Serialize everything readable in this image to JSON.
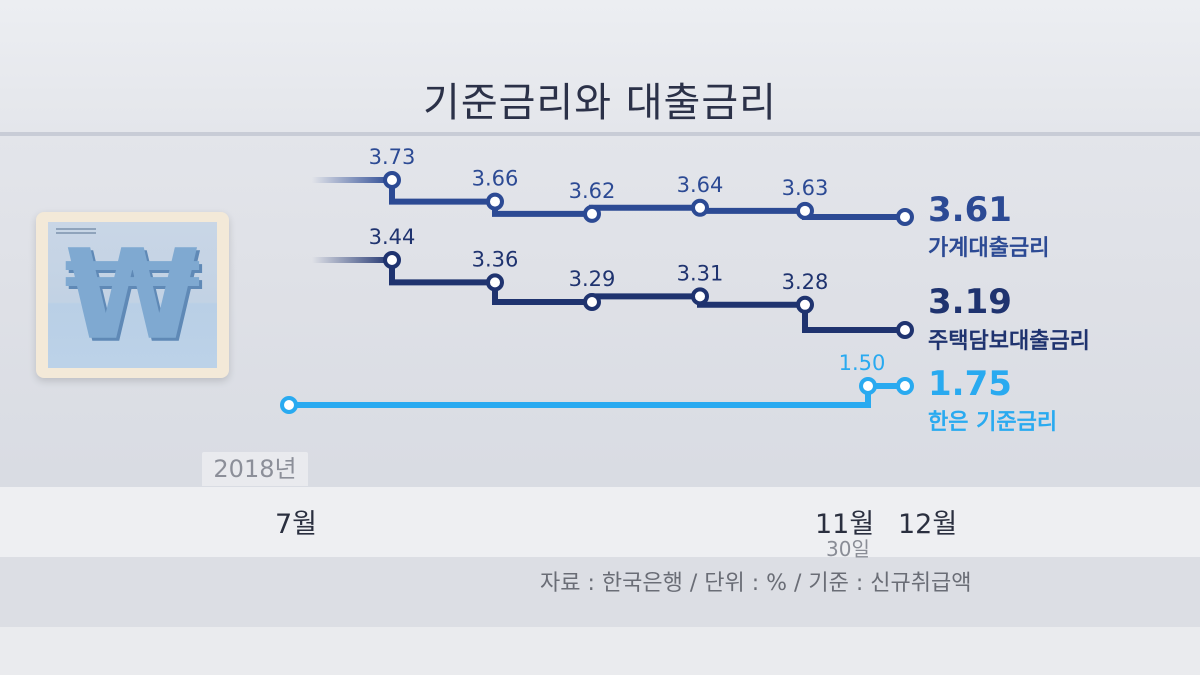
{
  "title": "기준금리와 대출금리",
  "year_tag": "2018년",
  "months": [
    {
      "label": "7월",
      "day": ""
    },
    {
      "label": "11월",
      "day": "30일"
    },
    {
      "label": "12월",
      "day": ""
    }
  ],
  "source": "자료 : 한국은행 / 단위 : % / 기준 : 신규취급액",
  "icon": "won-sign-icon",
  "chart_data": {
    "type": "line",
    "step": true,
    "title": "기준금리와 대출금리",
    "series": [
      {
        "name": "가계대출금리",
        "color": "#2c4a94",
        "points": [
          3.73,
          3.66,
          3.62,
          3.64,
          3.63,
          3.61
        ],
        "labels": [
          "3.73",
          "3.66",
          "3.62",
          "3.64",
          "3.63",
          "3.61"
        ]
      },
      {
        "name": "주택담보대출금리",
        "color": "#1f336f",
        "points": [
          3.44,
          3.36,
          3.29,
          3.31,
          3.28,
          3.19
        ],
        "labels": [
          "3.44",
          "3.36",
          "3.29",
          "3.31",
          "3.28",
          "3.19"
        ]
      },
      {
        "name": "한은 기준금리",
        "color": "#29aaf0",
        "points": [
          1.5,
          1.5,
          1.75
        ],
        "labels": [
          "",
          "1.50",
          "1.75"
        ]
      }
    ],
    "x_labels": [
      "7월",
      "11월 30일",
      "12월"
    ],
    "unit": "%"
  }
}
